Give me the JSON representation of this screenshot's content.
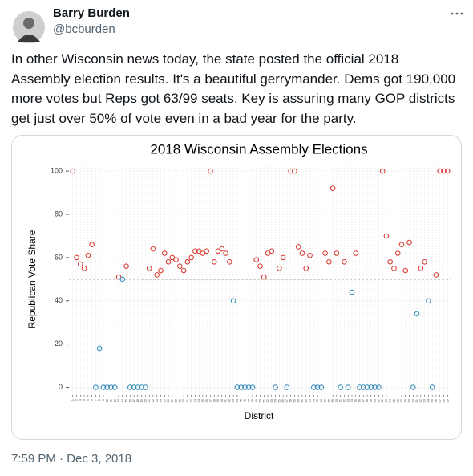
{
  "author": {
    "name": "Barry Burden",
    "handle": "@bcburden"
  },
  "text": "In other Wisconsin news today, the state posted the official 2018 Assembly election results. It's a beautiful gerrymander. Dems got 190,000 more votes but Reps got 63/99 seats. Key is assuring many GOP districts get just over 50% of vote even in a bad year for the party.",
  "timestamp": "7:59 PM · Dec 3, 2018",
  "chart_data": {
    "type": "scatter",
    "title": "2018 Wisconsin Assembly Elections",
    "x_label": "District",
    "y_label": "Republican Vote Share",
    "x": [
      1,
      2,
      3,
      4,
      5,
      6,
      7,
      8,
      9,
      10,
      11,
      12,
      13,
      14,
      15,
      16,
      17,
      18,
      19,
      20,
      21,
      22,
      23,
      24,
      25,
      26,
      27,
      28,
      29,
      30,
      31,
      32,
      33,
      34,
      35,
      36,
      37,
      38,
      39,
      40,
      41,
      42,
      43,
      44,
      45,
      46,
      47,
      48,
      49,
      50,
      51,
      52,
      53,
      54,
      55,
      56,
      57,
      58,
      59,
      60,
      61,
      62,
      63,
      64,
      65,
      66,
      67,
      68,
      69,
      70,
      71,
      72,
      73,
      74,
      75,
      76,
      77,
      78,
      79,
      80,
      81,
      82,
      83,
      84,
      85,
      86,
      87,
      88,
      89,
      90,
      91,
      92,
      93,
      94,
      95,
      96,
      97,
      98,
      99
    ],
    "values": [
      100,
      60,
      57,
      55,
      61,
      66,
      0,
      18,
      0,
      0,
      0,
      0,
      51,
      50,
      56,
      0,
      0,
      0,
      0,
      0,
      55,
      64,
      52,
      54,
      62,
      58,
      60,
      59,
      56,
      54,
      58,
      60,
      63,
      63,
      62,
      63,
      100,
      58,
      63,
      64,
      62,
      58,
      40,
      0,
      0,
      0,
      0,
      0,
      59,
      56,
      51,
      62,
      63,
      0,
      55,
      60,
      0,
      100,
      100,
      65,
      62,
      55,
      61,
      0,
      0,
      0,
      62,
      58,
      92,
      62,
      0,
      58,
      0,
      44,
      62,
      0,
      0,
      0,
      0,
      0,
      0,
      100,
      70,
      58,
      55,
      62,
      66,
      54,
      67,
      0,
      34,
      55,
      58,
      40,
      0,
      52,
      100,
      100,
      100
    ],
    "xlim": [
      0,
      100
    ],
    "ylim": [
      -3.5,
      103
    ],
    "yticks": [
      0,
      20,
      40,
      60,
      80,
      100
    ],
    "reference_line": 50,
    "color_above": "#d9352b",
    "color_below": "#2f8ab8",
    "grid": true
  }
}
